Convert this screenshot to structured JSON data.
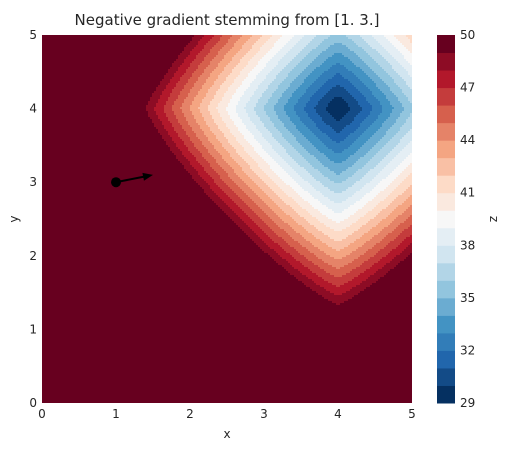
{
  "chart_data": {
    "type": "contour",
    "title": "Negative gradient stemming from [1. 3.]",
    "xlabel": "x",
    "ylabel": "y",
    "colorbar_label": "z",
    "xlim": [
      0,
      5
    ],
    "ylim": [
      0,
      5
    ],
    "xticks": [
      "0",
      "1",
      "2",
      "3",
      "4",
      "5"
    ],
    "yticks": [
      "0",
      "1",
      "2",
      "3",
      "4",
      "5"
    ],
    "colorbar_ticks": [
      "29",
      "32",
      "35",
      "38",
      "41",
      "44",
      "47",
      "50"
    ],
    "colorbar_range": [
      29,
      50
    ],
    "colormap": "RdBu",
    "colormap_stops": [
      "#67001f",
      "#b2182b",
      "#d6604d",
      "#f4a582",
      "#fddbc7",
      "#f7f7f7",
      "#d1e5f0",
      "#92c5de",
      "#4393c3",
      "#2166ac",
      "#053061"
    ],
    "minimum_point": [
      4,
      4
    ],
    "start_point": [
      1,
      3
    ],
    "arrow_end": [
      1.5,
      3.1
    ],
    "grid": false
  }
}
